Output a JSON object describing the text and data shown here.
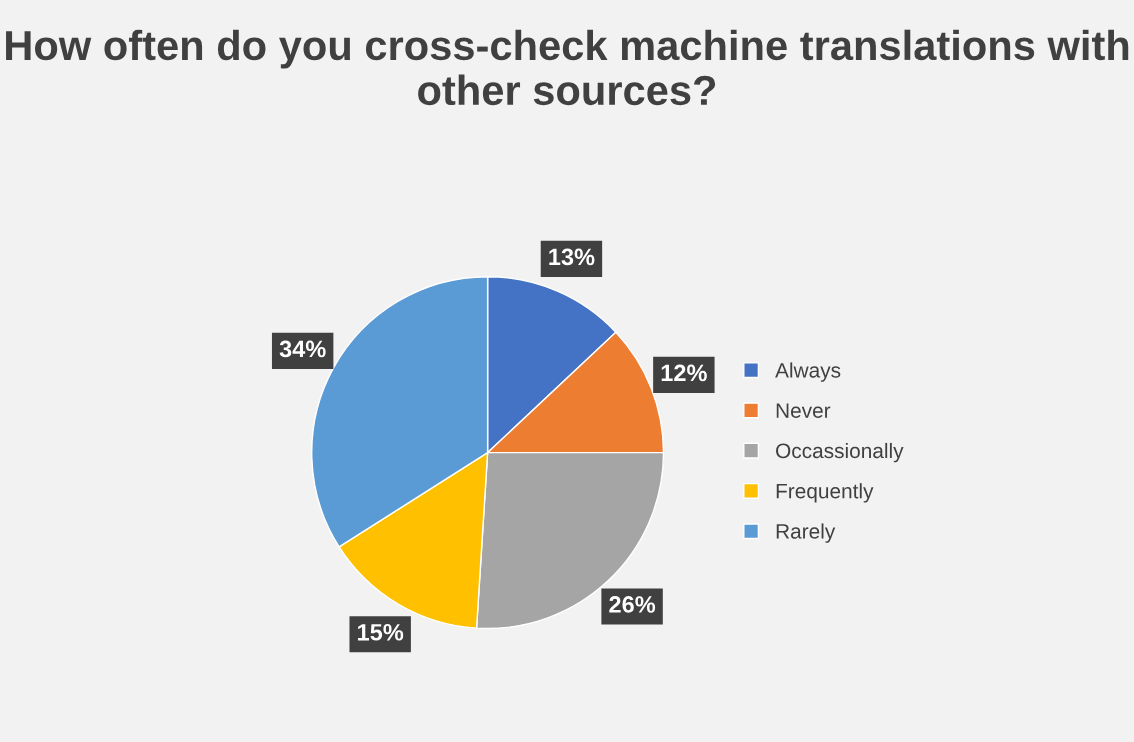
{
  "chart_data": {
    "type": "pie",
    "title": "How often do you cross-check machine translations with other sources?",
    "categories": [
      "Always",
      "Never",
      "Occassionally",
      "Frequently",
      "Rarely"
    ],
    "values": [
      13,
      12,
      26,
      15,
      34
    ],
    "colors": [
      "#4472c4",
      "#ed7d31",
      "#a5a5a5",
      "#ffc000",
      "#5b9bd5"
    ],
    "value_labels": [
      "13%",
      "12%",
      "26%",
      "15%",
      "34%"
    ],
    "legend": "right"
  }
}
